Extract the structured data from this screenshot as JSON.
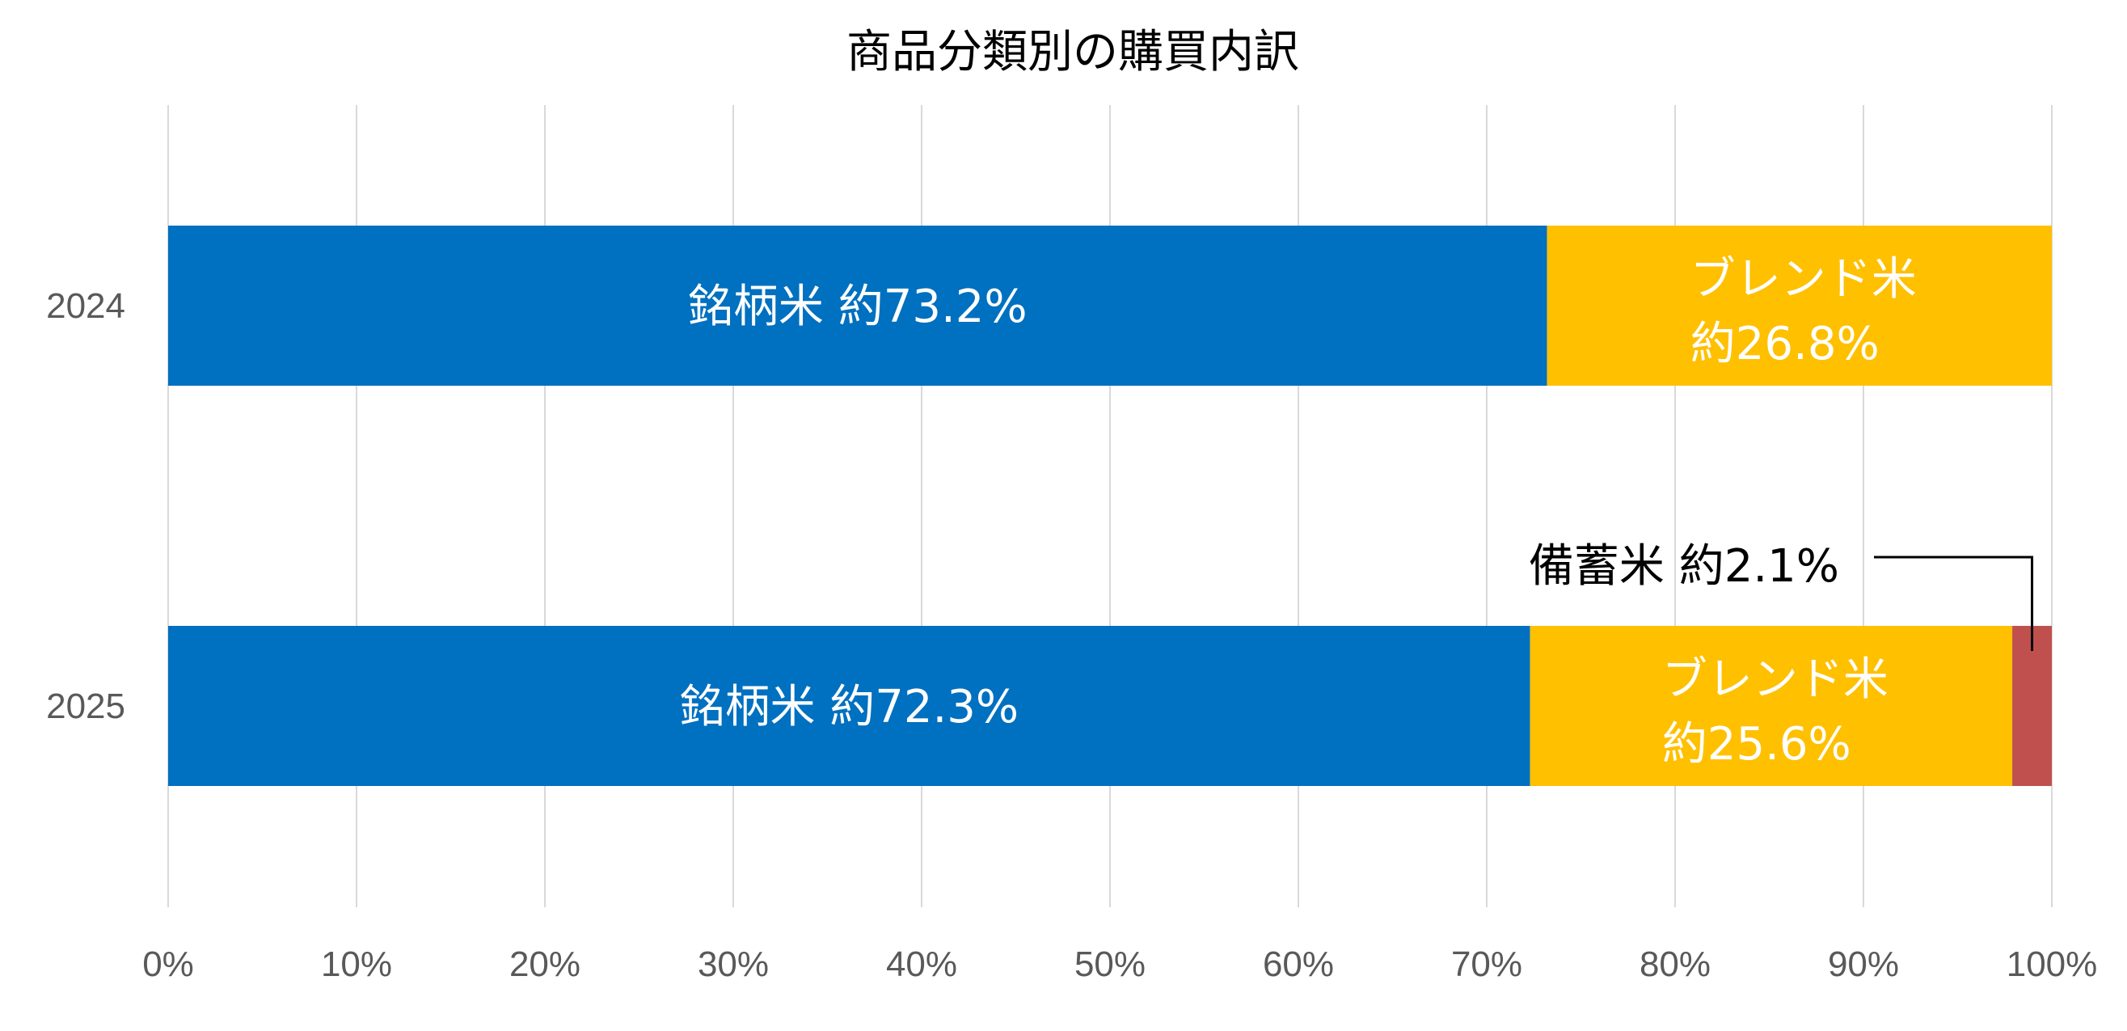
{
  "chart_data": {
    "type": "bar",
    "orientation": "horizontal",
    "stacked": "percent",
    "title": "商品分類別の購買内訳",
    "categories": [
      "2024",
      "2025"
    ],
    "series": [
      {
        "name": "銘柄米",
        "values": [
          73.2,
          72.3
        ],
        "color": "#0070C0",
        "labels": [
          "銘柄米 約73.2%",
          "銘柄米 約72.3%"
        ]
      },
      {
        "name": "ブレンド米",
        "values": [
          26.8,
          25.6
        ],
        "color": "#FFC000",
        "labels": [
          [
            "ブレンド米",
            "約26.8%"
          ],
          [
            "ブレンド米",
            "約25.6%"
          ]
        ]
      },
      {
        "name": "備蓄米",
        "values": [
          0,
          2.1
        ],
        "color": "#C0504D",
        "labels": [
          null,
          "備蓄米 約2.1%"
        ]
      }
    ],
    "xlim": [
      0,
      100
    ],
    "x_ticks": [
      "0%",
      "10%",
      "20%",
      "30%",
      "40%",
      "50%",
      "60%",
      "70%",
      "80%",
      "90%",
      "100%"
    ],
    "grid": "vertical",
    "legend": "none"
  }
}
